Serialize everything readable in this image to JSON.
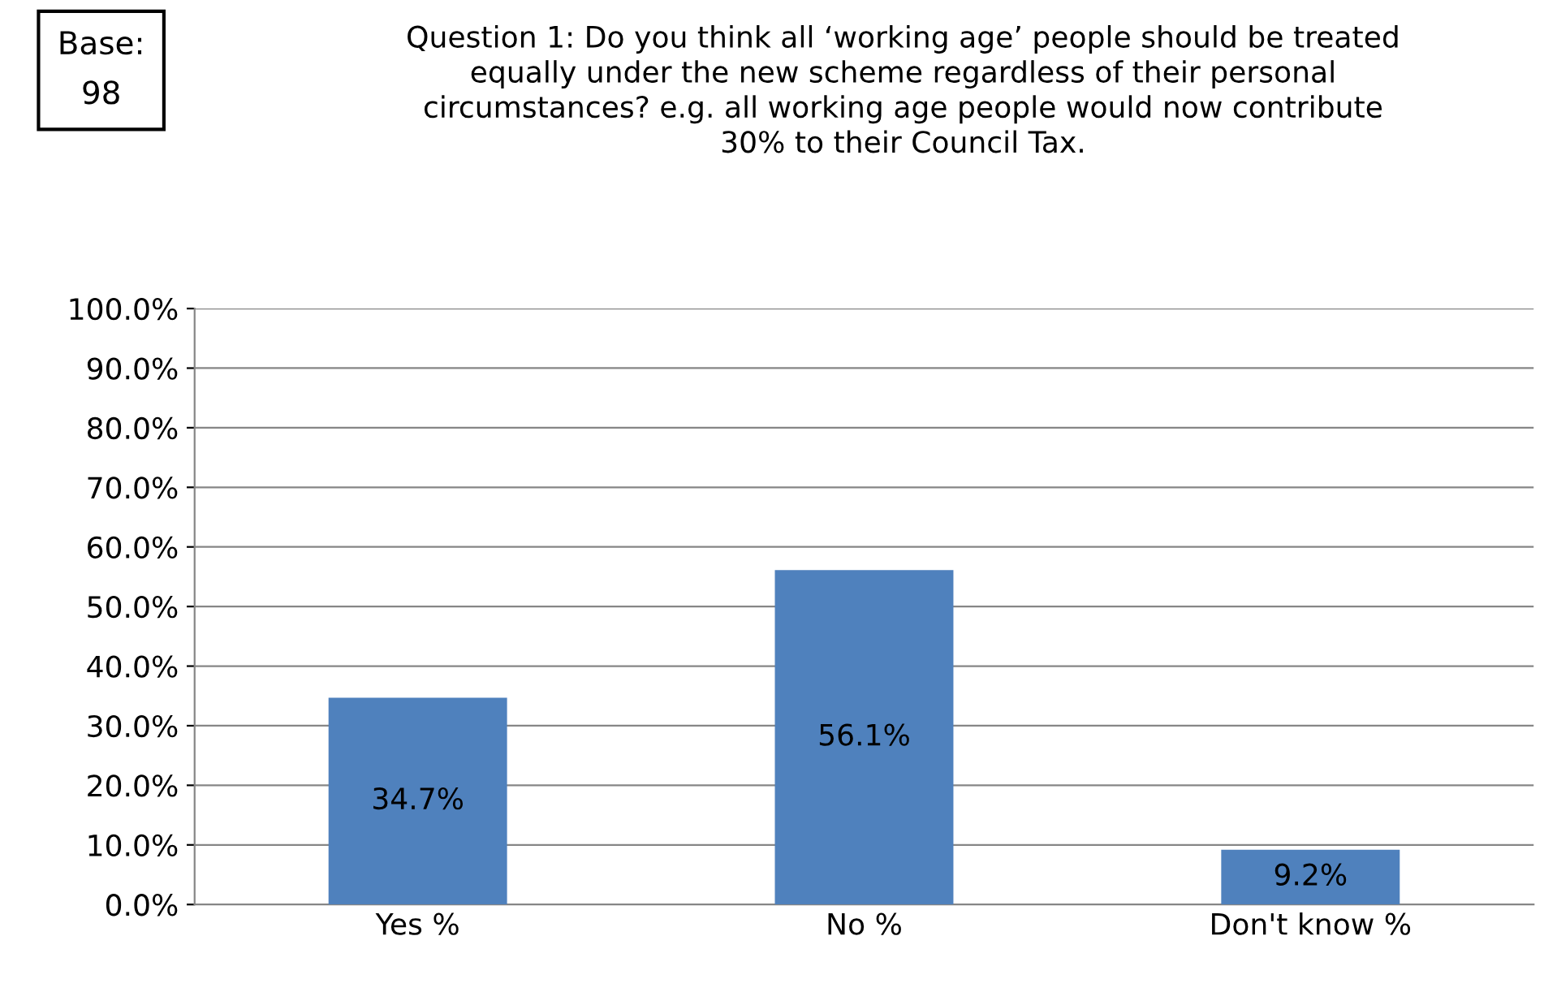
{
  "chart_data": {
    "type": "bar",
    "title": "Question 1: Do you think all ‘working age’ people should be treated\nequally under the new scheme regardless of their personal\ncircumstances? e.g. all working age people would now contribute\n30% to their Council Tax.",
    "annotations": [
      "Base:\n98"
    ],
    "categories": [
      "Yes %",
      "No %",
      "Don't know %"
    ],
    "values": [
      34.7,
      56.1,
      9.2
    ],
    "value_labels": [
      "34.7%",
      "56.1%",
      "9.2%"
    ],
    "color": "#4f81bd",
    "ylim": [
      0,
      100
    ],
    "yticks": [
      {
        "value": 0,
        "label": "0.0%"
      },
      {
        "value": 10,
        "label": "10.0%"
      },
      {
        "value": 20,
        "label": "20.0%"
      },
      {
        "value": 30,
        "label": "30.0%"
      },
      {
        "value": 40,
        "label": "40.0%"
      },
      {
        "value": 50,
        "label": "50.0%"
      },
      {
        "value": 60,
        "label": "60.0%"
      },
      {
        "value": 70,
        "label": "70.0%"
      },
      {
        "value": 80,
        "label": "80.0%"
      },
      {
        "value": 90,
        "label": "90.0%"
      },
      {
        "value": 100,
        "label": "100.0%"
      }
    ],
    "grid": "y",
    "legend": false
  }
}
